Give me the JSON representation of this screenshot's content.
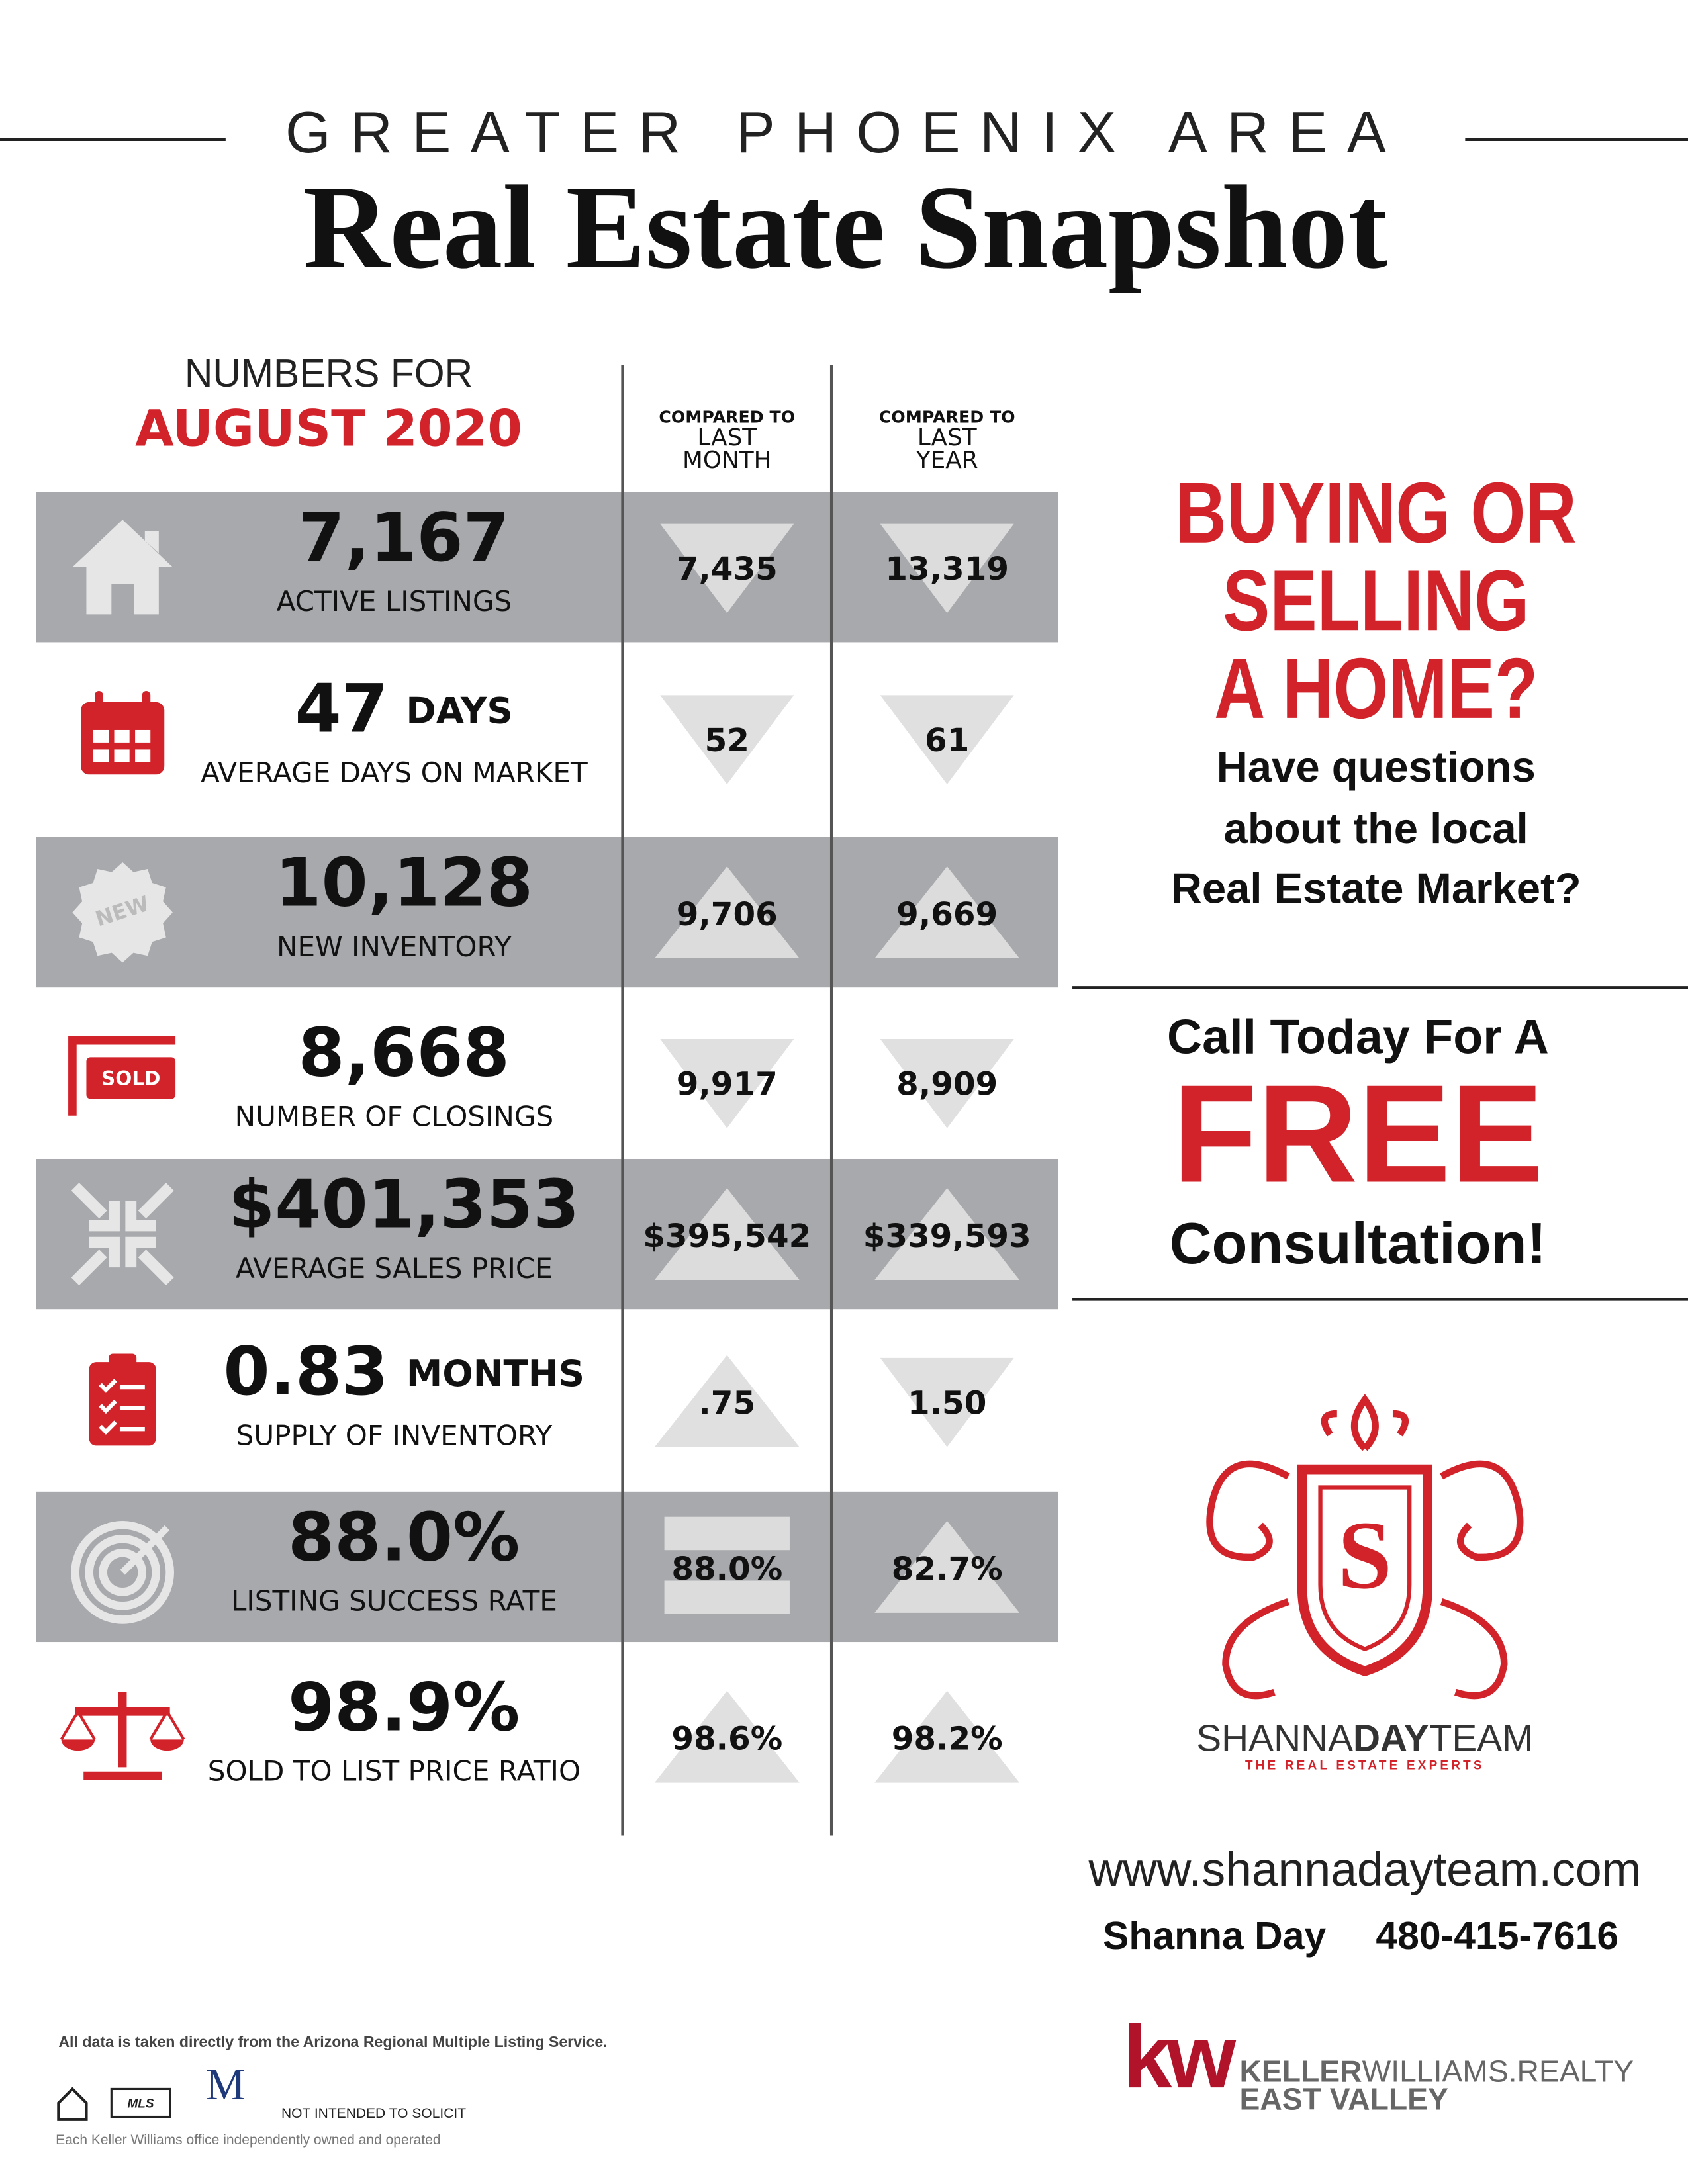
{
  "header": {
    "kicker": "GREATER PHOENIX AREA",
    "title": "Real Estate Snapshot"
  },
  "period": {
    "intro": "NUMBERS FOR",
    "month": "AUGUST 2020"
  },
  "columns": [
    {
      "line1": "COMPARED TO",
      "line2": "LAST",
      "line3": "MONTH"
    },
    {
      "line1": "COMPARED TO",
      "line2": "LAST",
      "line3": "YEAR"
    }
  ],
  "rows": [
    {
      "value": "7,167",
      "label": "ACTIVE LISTINGS",
      "last_month": "7,435",
      "last_year": "13,319"
    },
    {
      "value": "47",
      "unit": "DAYS",
      "label": "AVERAGE DAYS ON MARKET",
      "last_month": "52",
      "last_year": "61"
    },
    {
      "value": "10,128",
      "label": "NEW INVENTORY",
      "last_month": "9,706",
      "last_year": "9,669",
      "icon_text": "NEW"
    },
    {
      "value": "8,668",
      "label": "NUMBER OF CLOSINGS",
      "last_month": "9,917",
      "last_year": "8,909",
      "icon_text": "SOLD"
    },
    {
      "value": "$401,353",
      "label": "AVERAGE SALES PRICE",
      "last_month": "$395,542",
      "last_year": "$339,593"
    },
    {
      "value": "0.83",
      "unit": "MONTHS",
      "label": "SUPPLY OF INVENTORY",
      "last_month": ".75",
      "last_year": "1.50"
    },
    {
      "value": "88.0%",
      "label": "LISTING SUCCESS RATE",
      "last_month": "88.0%",
      "last_year": "82.7%"
    },
    {
      "value": "98.9%",
      "label": "SOLD TO LIST PRICE RATIO",
      "last_month": "98.6%",
      "last_year": "98.2%"
    }
  ],
  "promo": {
    "headline": [
      "BUYING OR",
      "SELLING",
      "A HOME?"
    ],
    "questions": [
      "Have questions",
      "about the local",
      "Real Estate Market?"
    ],
    "call": "Call Today For A",
    "free": "FREE",
    "consult": "Consultation!"
  },
  "team": {
    "logo_letter": "S",
    "name_a": "SHANNA",
    "name_b": "DAY",
    "name_c": "TEAM",
    "tagline": "THE REAL ESTATE EXPERTS"
  },
  "contact": {
    "website": "www.shannadayteam.com",
    "name": "Shanna Day",
    "phone": "480-415-7616"
  },
  "footer": {
    "source": "All data is taken directly from the Arizona Regional Multiple Listing Service.",
    "mls": "MLS",
    "title_agency": "M",
    "solicit": "NOT INTENDED TO SOLICIT",
    "office": "Each Keller Williams office independently owned and operated"
  },
  "brokerage": {
    "mark": "kw",
    "keller": "KELLER",
    "williams": "WILLIAMS.",
    "realty": "REALTY",
    "office": "EAST VALLEY"
  }
}
